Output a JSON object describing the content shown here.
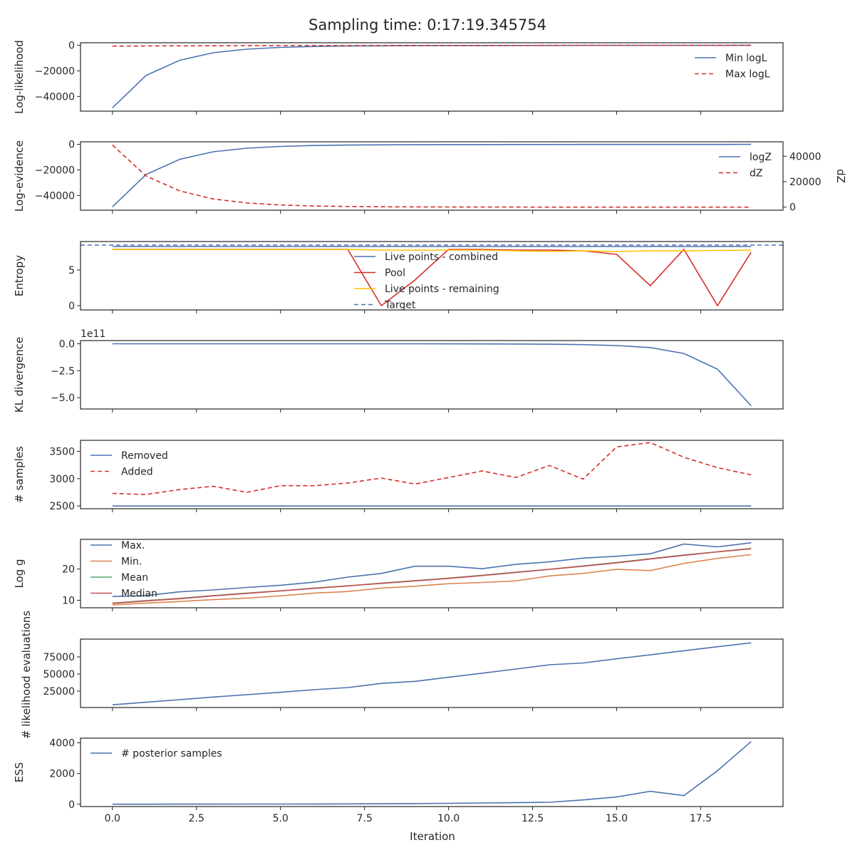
{
  "figure": {
    "title": "Sampling time: 0:17:19.345754",
    "xlabel": "Iteration"
  },
  "chart_data": [
    {
      "type": "line",
      "ylabel": "Log-likelihood",
      "x": [
        0,
        1,
        2,
        3,
        4,
        5,
        6,
        7,
        8,
        9,
        10,
        11,
        12,
        13,
        14,
        15,
        16,
        17,
        18,
        19
      ],
      "ylim": [
        -51500,
        2000
      ],
      "yticks": [
        {
          "v": 0,
          "label": "0"
        },
        {
          "v": -20000,
          "label": "−20000"
        },
        {
          "v": -40000,
          "label": "−40000"
        }
      ],
      "legend": "top-right",
      "series": [
        {
          "name": "Min logL",
          "color": "#4c72b0",
          "dash": "",
          "values": [
            -48900,
            -23600,
            -11700,
            -5800,
            -3000,
            -1600,
            -900,
            -550,
            -370,
            -270,
            -200,
            -150,
            -120,
            -100,
            -80,
            -65,
            -55,
            -45,
            -35,
            -28
          ]
        },
        {
          "name": "Max logL",
          "color": "#d62d28",
          "dash": "6,4",
          "values": [
            -600,
            -500,
            -400,
            -330,
            -280,
            -240,
            -200,
            -170,
            -150,
            -130,
            -110,
            -100,
            -90,
            -80,
            -70,
            -60,
            -50,
            -40,
            -30,
            -20
          ]
        }
      ]
    },
    {
      "type": "line",
      "ylabel": "Log-evidence",
      "ylabel_right": "dZ",
      "x": [
        0,
        1,
        2,
        3,
        4,
        5,
        6,
        7,
        8,
        9,
        10,
        11,
        12,
        13,
        14,
        15,
        16,
        17,
        18,
        19
      ],
      "ylim": [
        -51500,
        2000
      ],
      "yticks": [
        {
          "v": 0,
          "label": "0"
        },
        {
          "v": -20000,
          "label": "−20000"
        },
        {
          "v": -40000,
          "label": "−40000"
        }
      ],
      "ylim_right": [
        -2400,
        51400
      ],
      "yticks_right": [
        {
          "v": 0,
          "label": "0"
        },
        {
          "v": 20000,
          "label": "20000"
        },
        {
          "v": 40000,
          "label": "40000"
        }
      ],
      "legend": "top-right",
      "series": [
        {
          "name": "logZ",
          "color": "#4c72b0",
          "dash": "",
          "axis": "left",
          "values": [
            -48900,
            -23600,
            -11700,
            -5800,
            -3000,
            -1600,
            -900,
            -550,
            -370,
            -270,
            -200,
            -150,
            -120,
            -100,
            -80,
            -65,
            -55,
            -45,
            -35,
            -28
          ]
        },
        {
          "name": "dZ",
          "color": "#d62d28",
          "dash": "6,4",
          "axis": "right",
          "values": [
            48900,
            24500,
            12800,
            6400,
            3300,
            1700,
            900,
            500,
            300,
            200,
            120,
            80,
            50,
            30,
            20,
            12,
            8,
            5,
            3,
            2
          ]
        }
      ]
    },
    {
      "type": "line",
      "ylabel": "Entropy",
      "x": [
        0,
        1,
        2,
        3,
        4,
        5,
        6,
        7,
        8,
        9,
        10,
        11,
        12,
        13,
        14,
        15,
        16,
        17,
        18,
        19
      ],
      "ylim": [
        -0.6,
        9.0
      ],
      "yticks": [
        {
          "v": 0,
          "label": "0"
        },
        {
          "v": 5,
          "label": "5"
        }
      ],
      "legend": "center",
      "hline": {
        "name": "Target",
        "value": 8.5,
        "color": "#4c72b0",
        "dash": "6,4"
      },
      "series": [
        {
          "name": "Live points - combined",
          "color": "#4c72b0",
          "dash": "",
          "values": [
            8.3,
            8.3,
            8.3,
            8.3,
            8.3,
            8.3,
            8.3,
            8.3,
            8.3,
            8.3,
            8.3,
            8.3,
            8.3,
            8.3,
            8.3,
            8.3,
            8.3,
            8.3,
            8.3,
            8.3
          ]
        },
        {
          "name": "Pool",
          "color": "#d62d28",
          "dash": "",
          "values": [
            7.9,
            7.9,
            7.9,
            7.9,
            7.9,
            7.9,
            7.9,
            7.9,
            0.0,
            3.6,
            7.9,
            7.9,
            7.8,
            7.8,
            7.7,
            7.2,
            2.8,
            7.9,
            0.0,
            7.5
          ]
        },
        {
          "name": "Live points - remaining",
          "color": "#ffc107",
          "dash": "",
          "values": [
            7.9,
            7.9,
            7.9,
            7.9,
            7.9,
            7.9,
            7.9,
            7.9,
            7.8,
            7.8,
            7.8,
            7.8,
            7.7,
            7.6,
            7.7,
            7.6,
            7.7,
            7.7,
            7.75,
            7.8
          ]
        }
      ]
    },
    {
      "type": "line",
      "ylabel": "KL divergence",
      "offset_text": "1e11",
      "x": [
        0,
        1,
        2,
        3,
        4,
        5,
        6,
        7,
        8,
        9,
        10,
        11,
        12,
        13,
        14,
        15,
        16,
        17,
        18,
        19
      ],
      "ylim": [
        -6.05,
        0.3
      ],
      "yticks": [
        {
          "v": 0,
          "label": "0.0"
        },
        {
          "v": -2.5,
          "label": "−2.5"
        },
        {
          "v": -5.0,
          "label": "−5.0"
        }
      ],
      "series": [
        {
          "name": "",
          "color": "#4c72b0",
          "dash": "",
          "values": [
            0,
            0,
            0,
            0,
            0,
            0,
            0,
            0,
            0,
            0,
            -0.005,
            -0.01,
            -0.02,
            -0.04,
            -0.08,
            -0.16,
            -0.35,
            -0.9,
            -2.35,
            -5.75
          ]
        }
      ]
    },
    {
      "type": "line",
      "ylabel": "# samples",
      "x": [
        0,
        1,
        2,
        3,
        4,
        5,
        6,
        7,
        8,
        9,
        10,
        11,
        12,
        13,
        14,
        15,
        16,
        17,
        18,
        19
      ],
      "ylim": [
        2450,
        3700
      ],
      "yticks": [
        {
          "v": 2500,
          "label": "2500"
        },
        {
          "v": 3000,
          "label": "3000"
        },
        {
          "v": 3500,
          "label": "3500"
        }
      ],
      "legend": "top-left",
      "series": [
        {
          "name": "Removed",
          "color": "#4c72b0",
          "dash": "",
          "values": [
            2500,
            2500,
            2500,
            2500,
            2500,
            2500,
            2500,
            2500,
            2500,
            2500,
            2500,
            2500,
            2500,
            2500,
            2500,
            2500,
            2500,
            2500,
            2500,
            2500
          ]
        },
        {
          "name": "Added",
          "color": "#d62d28",
          "dash": "6,4",
          "values": [
            2730,
            2710,
            2800,
            2860,
            2750,
            2870,
            2870,
            2920,
            3010,
            2900,
            3020,
            3140,
            3020,
            3240,
            2990,
            3580,
            3660,
            3390,
            3200,
            3070
          ]
        }
      ]
    },
    {
      "type": "line",
      "ylabel": "Log g",
      "x": [
        0,
        1,
        2,
        3,
        4,
        5,
        6,
        7,
        8,
        9,
        10,
        11,
        12,
        13,
        14,
        15,
        16,
        17,
        18,
        19
      ],
      "ylim": [
        7.6,
        29.5
      ],
      "yticks": [
        {
          "v": 10,
          "label": "10"
        },
        {
          "v": 20,
          "label": "20"
        }
      ],
      "legend": "top-left",
      "series": [
        {
          "name": "Max.",
          "color": "#4c72b0",
          "dash": "",
          "values": [
            11.2,
            11.5,
            12.7,
            13.3,
            14.1,
            14.8,
            15.8,
            17.4,
            18.6,
            20.9,
            20.9,
            20.1,
            21.5,
            22.3,
            23.5,
            24.1,
            24.9,
            28.0,
            27.1,
            28.4
          ]
        },
        {
          "name": "Min.",
          "color": "#dd8452",
          "dash": "",
          "values": [
            8.5,
            9.1,
            9.6,
            10.2,
            10.7,
            11.4,
            12.3,
            12.8,
            13.9,
            14.5,
            15.3,
            15.7,
            16.2,
            17.8,
            18.6,
            19.9,
            19.5,
            21.8,
            23.4,
            24.6
          ]
        },
        {
          "name": "Mean",
          "color": "#55a868",
          "dash": "",
          "values": [
            9.1,
            9.9,
            10.6,
            11.5,
            12.3,
            13.0,
            13.9,
            14.6,
            15.5,
            16.3,
            17.1,
            18.0,
            19.0,
            19.9,
            21.0,
            22.1,
            23.3,
            24.5,
            25.5,
            26.6
          ]
        },
        {
          "name": "Median",
          "color": "#c44e52",
          "dash": "",
          "values": [
            9.0,
            9.8,
            10.5,
            11.4,
            12.2,
            13.0,
            13.8,
            14.6,
            15.4,
            16.2,
            17.0,
            17.9,
            18.9,
            19.9,
            20.9,
            22.0,
            23.2,
            24.4,
            25.5,
            26.5
          ]
        }
      ]
    },
    {
      "type": "line",
      "ylabel": "# likelihood evaluations",
      "x": [
        0,
        1,
        2,
        3,
        4,
        5,
        6,
        7,
        8,
        9,
        10,
        11,
        12,
        13,
        14,
        15,
        16,
        17,
        18,
        19
      ],
      "ylim": [
        1000,
        101000
      ],
      "yticks": [
        {
          "v": 25000,
          "label": "25000"
        },
        {
          "v": 50000,
          "label": "50000"
        },
        {
          "v": 75000,
          "label": "75000"
        }
      ],
      "series": [
        {
          "name": "",
          "color": "#4c72b0",
          "dash": "",
          "values": [
            5000,
            8700,
            12500,
            16300,
            19800,
            23300,
            27000,
            30200,
            36200,
            39200,
            45200,
            51200,
            57300,
            63500,
            66100,
            72300,
            78000,
            84000,
            89900,
            95600
          ]
        }
      ]
    },
    {
      "type": "line",
      "ylabel": "ESS",
      "x": [
        0,
        1,
        2,
        3,
        4,
        5,
        6,
        7,
        8,
        9,
        10,
        11,
        12,
        13,
        14,
        15,
        16,
        17,
        18,
        19
      ],
      "ylim": [
        -150,
        4300
      ],
      "yticks": [
        {
          "v": 0,
          "label": "0"
        },
        {
          "v": 2000,
          "label": "2000"
        },
        {
          "v": 4000,
          "label": "4000"
        }
      ],
      "legend": "top-left",
      "series": [
        {
          "name": "# posterior samples",
          "color": "#4c72b0",
          "dash": "",
          "values": [
            5,
            5,
            6,
            8,
            10,
            12,
            15,
            20,
            30,
            45,
            60,
            80,
            100,
            130,
            280,
            470,
            840,
            560,
            2180,
            4080
          ]
        }
      ]
    }
  ],
  "xaxis": {
    "xlim": [
      -0.95,
      19.95
    ],
    "ticks": [
      {
        "v": 0,
        "label": "0.0"
      },
      {
        "v": 2.5,
        "label": "2.5"
      },
      {
        "v": 5,
        "label": "5.0"
      },
      {
        "v": 7.5,
        "label": "7.5"
      },
      {
        "v": 10,
        "label": "10.0"
      },
      {
        "v": 12.5,
        "label": "12.5"
      },
      {
        "v": 15,
        "label": "15.0"
      },
      {
        "v": 17.5,
        "label": "17.5"
      }
    ]
  }
}
